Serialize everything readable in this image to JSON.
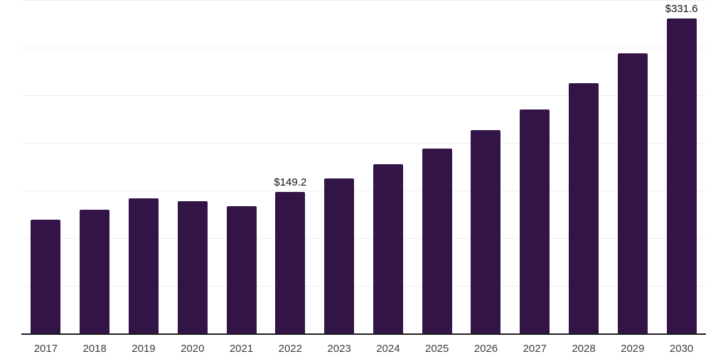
{
  "chart_data": {
    "type": "bar",
    "title": "",
    "xlabel": "",
    "ylabel": "",
    "categories": [
      "2017",
      "2018",
      "2019",
      "2020",
      "2021",
      "2022",
      "2023",
      "2024",
      "2025",
      "2026",
      "2027",
      "2028",
      "2029",
      "2030"
    ],
    "values": [
      120.0,
      130.5,
      142.4,
      139.9,
      134.4,
      149.2,
      163.2,
      178.0,
      194.7,
      214.1,
      236.2,
      263.4,
      295.0,
      331.6
    ],
    "data_labels": {
      "2022": "$149.2",
      "2030": "$331.6"
    },
    "ylim": [
      0,
      350
    ],
    "gridline_step": 50,
    "grid": true,
    "legend_position": "none",
    "y_tick_labels_visible": false,
    "colors": {
      "bar": "#331447",
      "axis_line": "#1f1f1f",
      "gridline": "#efefef",
      "tick_label": "#3d3d3d",
      "data_label": "#111111",
      "background": "#ffffff"
    }
  }
}
